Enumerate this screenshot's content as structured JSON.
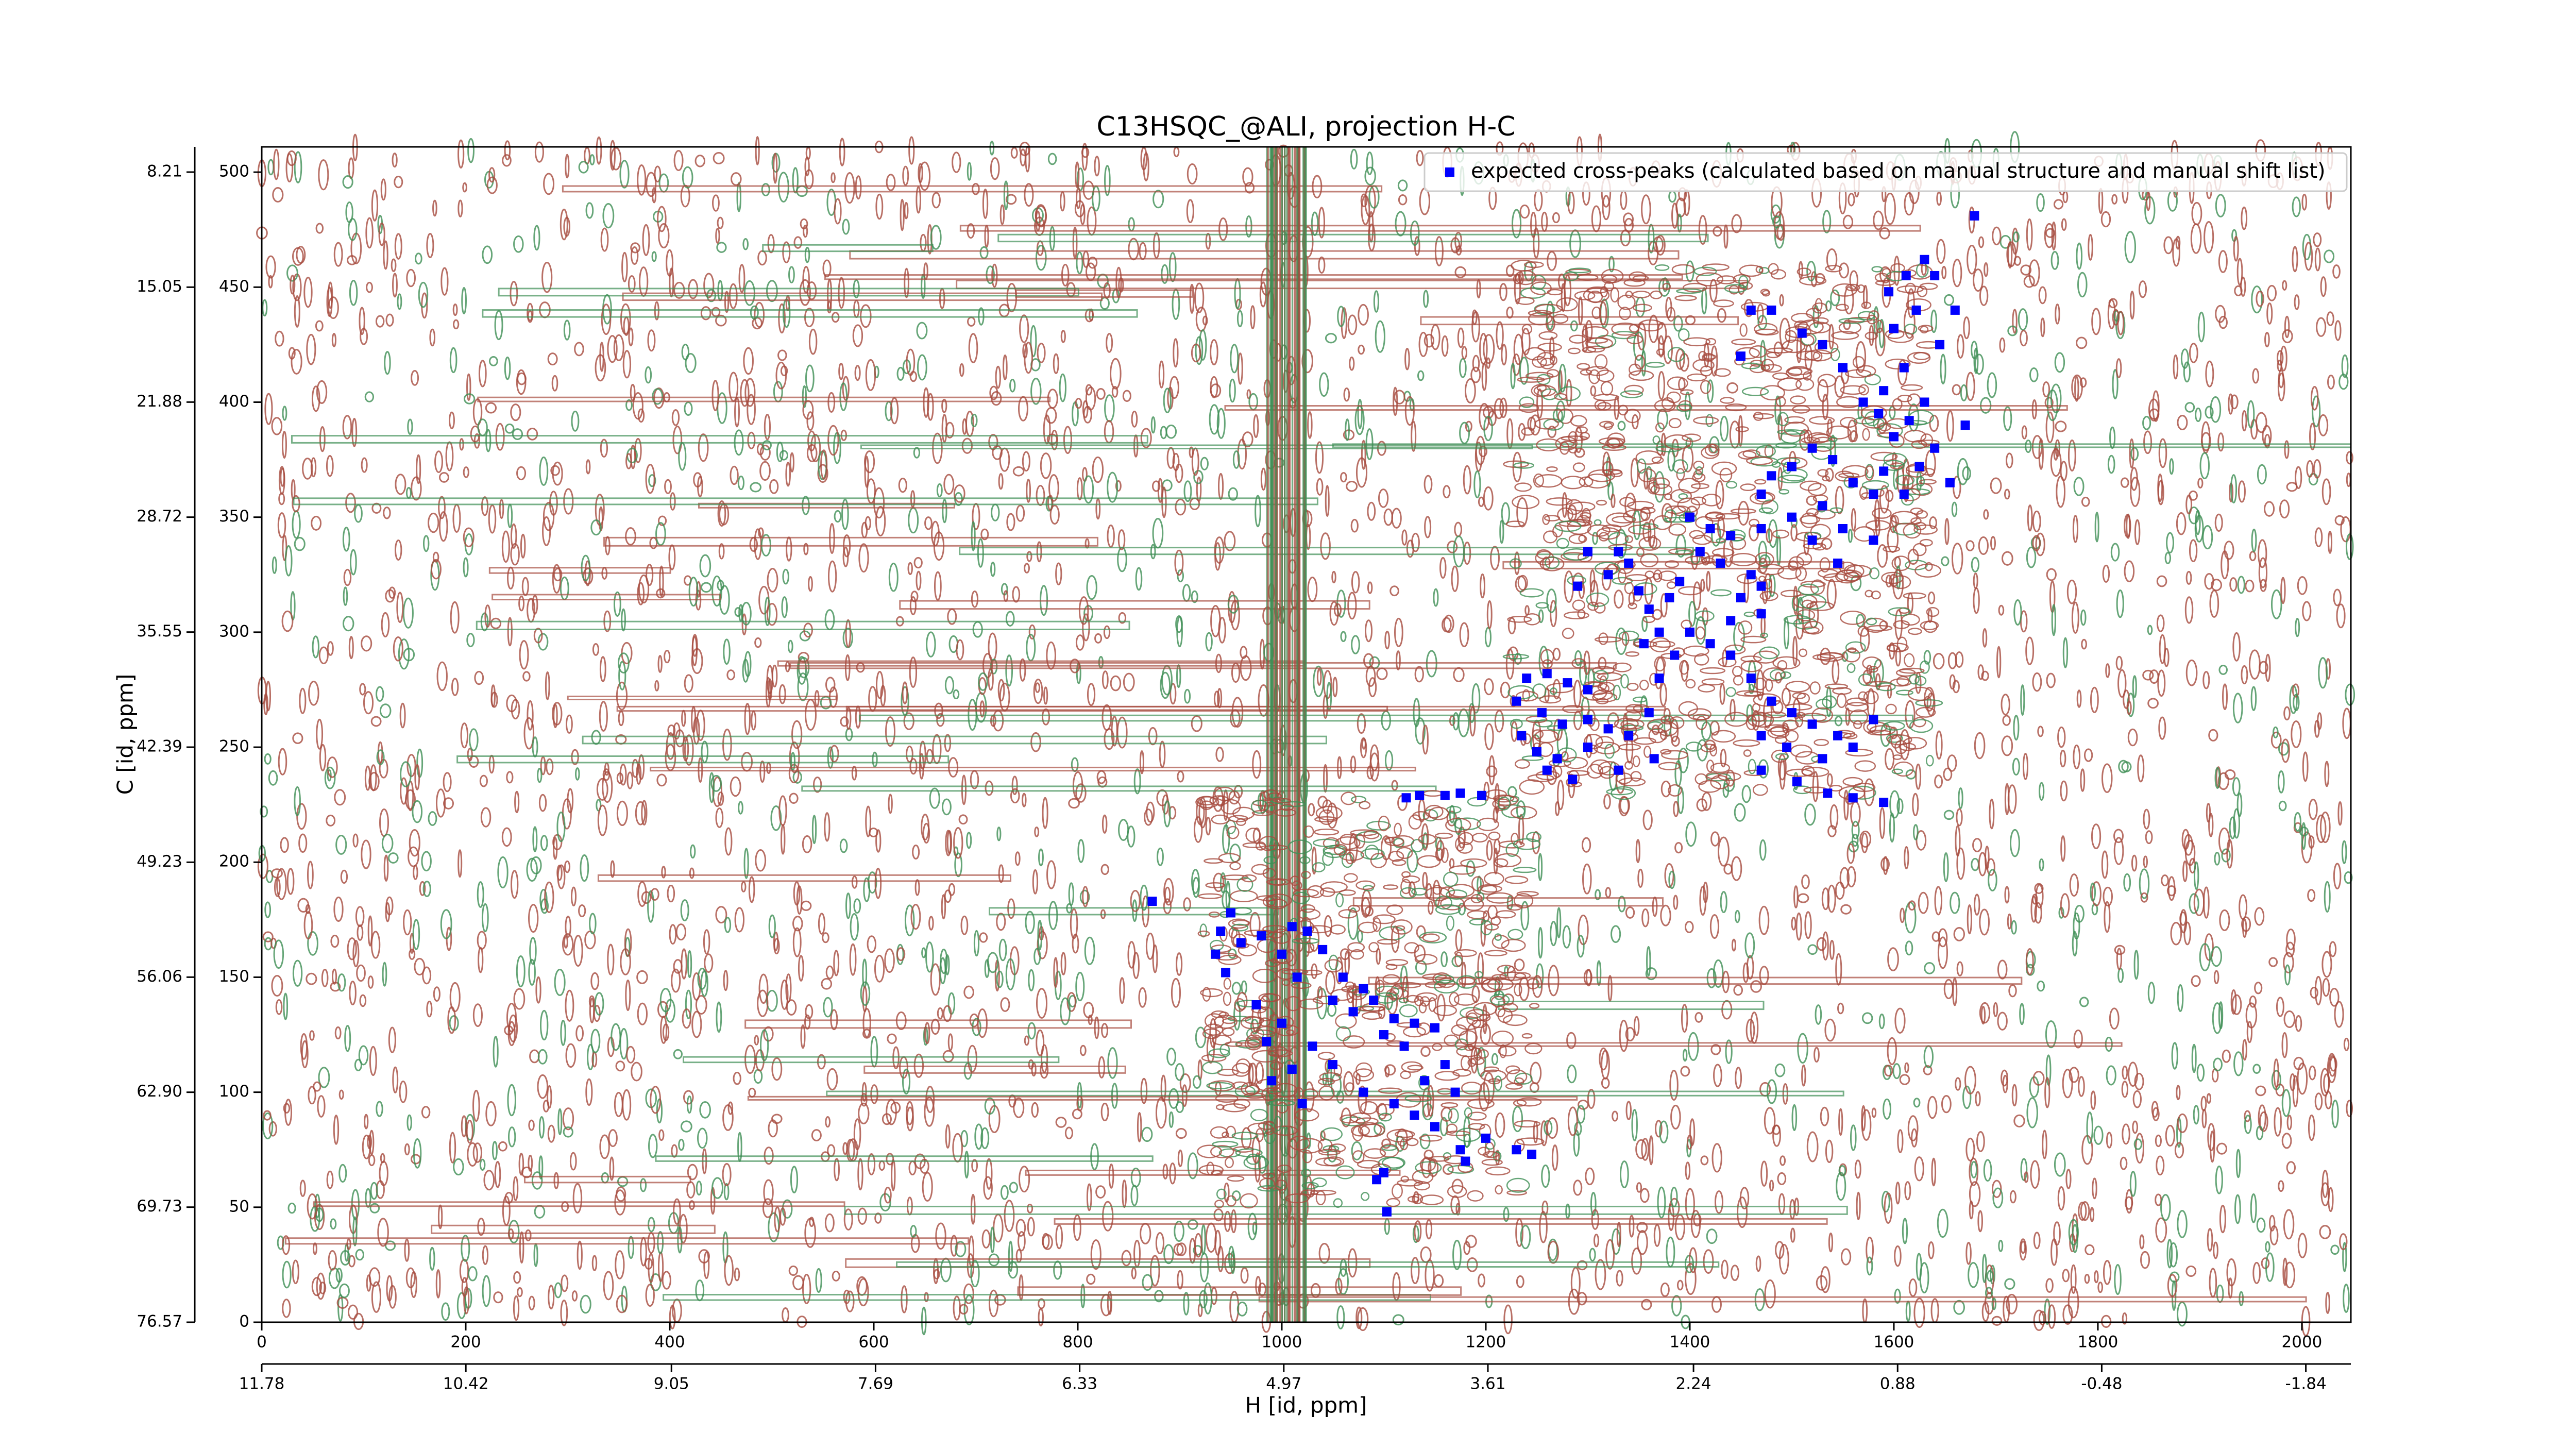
{
  "chart_data": {
    "type": "scatter",
    "title": "C13HSQC_@ALI, projection H-C",
    "x_label": "H [id, ppm]",
    "y_label": "C [id, ppm]",
    "xlim": [
      0,
      2048
    ],
    "ylim": [
      0,
      511
    ],
    "xticks": [
      0,
      200,
      400,
      600,
      800,
      1000,
      1200,
      1400,
      1600,
      1800,
      2000
    ],
    "yticks": [
      0,
      50,
      100,
      150,
      200,
      250,
      300,
      350,
      400,
      450,
      500
    ],
    "x2lim": [
      11.78,
      -2.14
    ],
    "x2ticks": [
      11.78,
      10.42,
      9.05,
      7.69,
      6.33,
      4.97,
      3.61,
      2.24,
      0.88,
      -0.48,
      -1.84
    ],
    "y2lim": [
      76.57,
      6.71
    ],
    "y2ticks": [
      76.57,
      69.73,
      {
        "value": 62.9,
        "label": "62.90"
      },
      56.06,
      49.23,
      42.39,
      35.55,
      28.72,
      21.88,
      15.05,
      8.21
    ],
    "legend": "upper right",
    "series": [
      {
        "name": "expected cross-peaks (calculated based on manual structure and manual shift list)",
        "color": "#0000ff",
        "x": [
          1679,
          1630,
          1612,
          1640,
          1595,
          1660,
          1622,
          1600,
          1645,
          1610,
          1590,
          1630,
          1615,
          1600,
          1640,
          1625,
          1655,
          1610,
          1590,
          1670,
          1460,
          1480,
          1510,
          1530,
          1450,
          1550,
          1570,
          1585,
          1520,
          1540,
          1500,
          1480,
          1560,
          1580,
          1530,
          1470,
          1500,
          1550,
          1520,
          1580,
          1470,
          1545,
          1400,
          1420,
          1440,
          1410,
          1430,
          1460,
          1390,
          1380,
          1450,
          1470,
          1360,
          1340,
          1350,
          1330,
          1370,
          1400,
          1420,
          1440,
          1385,
          1355,
          1320,
          1300,
          1290,
          1440,
          1470,
          1240,
          1260,
          1280,
          1300,
          1230,
          1255,
          1275,
          1300,
          1320,
          1340,
          1235,
          1250,
          1270,
          1300,
          1330,
          1365,
          1285,
          1260,
          1360,
          1370,
          1460,
          1480,
          1500,
          1520,
          1545,
          1470,
          1495,
          1530,
          1560,
          1580,
          1505,
          1535,
          1560,
          1590,
          1470,
          1122,
          1135,
          1160,
          1175,
          1196,
          873,
          950,
          940,
          960,
          935,
          945,
          980,
          1010,
          1025,
          1000,
          1015,
          1040,
          1060,
          1080,
          1050,
          1070,
          1090,
          1110,
          1100,
          1130,
          1150,
          1120,
          1160,
          1140,
          1170,
          1000,
          985,
          1030,
          1010,
          1050,
          1080,
          1110,
          1130,
          1150,
          1175,
          1200,
          1230,
          1245,
          1180,
          1100,
          1093,
          1103,
          975,
          990,
          1020
        ],
        "values": [
          481,
          462,
          455,
          455,
          448,
          440,
          440,
          432,
          425,
          415,
          405,
          400,
          392,
          385,
          380,
          372,
          365,
          360,
          370,
          390,
          440,
          440,
          430,
          425,
          420,
          415,
          400,
          395,
          380,
          375,
          372,
          368,
          365,
          360,
          355,
          360,
          350,
          345,
          340,
          340,
          345,
          330,
          350,
          345,
          342,
          335,
          330,
          325,
          322,
          315,
          315,
          308,
          310,
          330,
          318,
          335,
          300,
          300,
          295,
          290,
          290,
          295,
          325,
          335,
          320,
          305,
          320,
          280,
          282,
          278,
          275,
          270,
          265,
          260,
          262,
          258,
          255,
          255,
          248,
          245,
          250,
          240,
          245,
          236,
          240,
          265,
          280,
          280,
          270,
          265,
          260,
          255,
          255,
          250,
          245,
          250,
          262,
          235,
          230,
          228,
          226,
          240,
          228,
          229,
          229,
          230,
          229,
          183,
          178,
          170,
          165,
          160,
          152,
          168,
          172,
          170,
          160,
          150,
          162,
          150,
          145,
          140,
          135,
          140,
          132,
          125,
          130,
          128,
          120,
          112,
          105,
          100,
          130,
          122,
          120,
          110,
          112,
          100,
          95,
          90,
          85,
          75,
          80,
          75,
          73,
          70,
          65,
          62,
          48,
          138,
          105,
          95
        ]
      }
    ]
  }
}
